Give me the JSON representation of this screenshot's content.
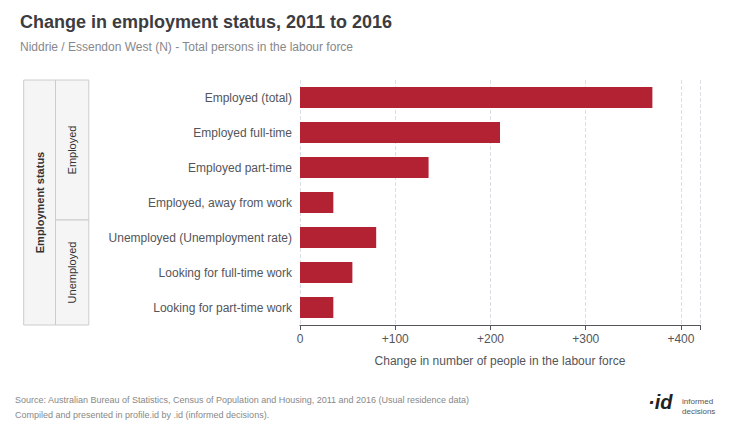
{
  "chart_data": {
    "type": "bar",
    "orientation": "horizontal",
    "title": "Change in employment status, 2011 to 2016",
    "subtitle": "Niddrie / Essendon West (N) - Total persons in the labour force",
    "xlabel": "Change in number of people in the labour force",
    "ylabel": "Employment status",
    "categories": [
      "Employed (total)",
      "Employed full-time",
      "Employed part-time",
      "Employed, away from work",
      "Unemployed (Unemployment rate)",
      "Looking for full-time work",
      "Looking for part-time work"
    ],
    "values": [
      370,
      210,
      135,
      35,
      80,
      55,
      35
    ],
    "color": "#b22232",
    "groups": [
      {
        "label": "Employed",
        "categories": [
          "Employed (total)",
          "Employed full-time",
          "Employed part-time",
          "Employed, away from work"
        ]
      },
      {
        "label": "Unemployed",
        "categories": [
          "Unemployed (Unemployment rate)",
          "Looking for full-time work",
          "Looking for part-time work"
        ]
      }
    ],
    "xlim": [
      0,
      420
    ],
    "xticks": [
      0,
      {
        "value": 100,
        "label": "+100"
      },
      {
        "value": 200,
        "label": "+200"
      },
      {
        "value": 300,
        "label": "+300"
      },
      {
        "value": 400,
        "label": "+400"
      }
    ],
    "grid": true,
    "annotations": {
      "source": [
        "Source: Australian Bureau of Statistics, Census of Population and Housing, 2011 and 2016 (Usual residence data)",
        "Compiled and presented in profile.id by .id (informed decisions)."
      ],
      "logo": "·id",
      "logo_text": "informed\ndecisions"
    }
  }
}
